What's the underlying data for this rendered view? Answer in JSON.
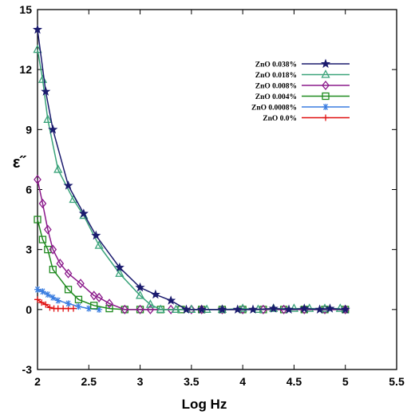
{
  "chart_data": {
    "type": "line",
    "title": "",
    "xlabel": "Log Hz",
    "ylabel": "ε˝",
    "xlim": [
      2,
      5.5
    ],
    "ylim": [
      -3,
      15
    ],
    "xticks": [
      2,
      2.5,
      3,
      3.5,
      4,
      4.5,
      5,
      5.5
    ],
    "xtick_labels": [
      "2",
      "2.5",
      "3",
      "3.5",
      "4",
      "4.5",
      "5",
      "5.5"
    ],
    "yticks": [
      -3,
      0,
      3,
      6,
      9,
      12,
      15
    ],
    "ytick_labels": [
      "-3",
      "0",
      "3",
      "6",
      "9",
      "12",
      "15"
    ],
    "grid": false,
    "legend_position": "top-right",
    "series": [
      {
        "name": "ZnO 0.038%",
        "color": "#1b1b6e",
        "marker": "star",
        "x": [
          2.0,
          2.08,
          2.15,
          2.3,
          2.45,
          2.57,
          2.8,
          3.0,
          3.15,
          3.3,
          3.45,
          3.6,
          3.8,
          3.95,
          4.1,
          4.3,
          4.45,
          4.6,
          4.75,
          4.85,
          5.0
        ],
        "y": [
          14.0,
          10.9,
          9.0,
          6.2,
          4.8,
          3.7,
          2.1,
          1.1,
          0.75,
          0.45,
          0.0,
          0.0,
          0.0,
          0.0,
          0.0,
          0.05,
          0.0,
          0.05,
          0.0,
          0.05,
          0.0
        ]
      },
      {
        "name": "ZnO 0.018%",
        "color": "#3aa37a",
        "marker": "triangle",
        "x": [
          2.0,
          2.05,
          2.1,
          2.2,
          2.35,
          2.45,
          2.6,
          2.8,
          3.0,
          3.1,
          3.2,
          3.35,
          3.5,
          3.65,
          3.8,
          4.0,
          4.15,
          4.3,
          4.5,
          4.65,
          4.8,
          4.95
        ],
        "y": [
          13.0,
          11.5,
          9.5,
          7.0,
          5.5,
          4.7,
          3.2,
          1.8,
          0.7,
          0.25,
          0.0,
          0.0,
          0.0,
          0.0,
          0.0,
          0.05,
          0.0,
          0.05,
          0.05,
          0.05,
          0.05,
          0.05
        ]
      },
      {
        "name": "ZnO 0.008%",
        "color": "#8b1a8b",
        "marker": "diamond",
        "x": [
          2.0,
          2.05,
          2.1,
          2.15,
          2.22,
          2.3,
          2.42,
          2.55,
          2.6,
          2.7,
          2.85,
          3.0,
          3.1,
          3.3,
          3.5,
          3.6,
          3.8,
          4.0,
          4.2,
          4.4,
          4.6,
          4.8,
          5.0
        ],
        "y": [
          6.5,
          5.3,
          4.0,
          3.0,
          2.3,
          1.8,
          1.3,
          0.7,
          0.6,
          0.3,
          0.0,
          0.0,
          0.0,
          0.0,
          0.0,
          0.0,
          0.0,
          0.0,
          0.0,
          0.0,
          0.0,
          0.0,
          0.0
        ]
      },
      {
        "name": "ZnO 0.004%",
        "color": "#1e8a1e",
        "marker": "square",
        "x": [
          2.0,
          2.05,
          2.1,
          2.15,
          2.3,
          2.4,
          2.55,
          2.7,
          2.85,
          3.0,
          3.2,
          3.4,
          3.6,
          3.8,
          4.0,
          4.2,
          4.4,
          4.6,
          4.8,
          5.0
        ],
        "y": [
          4.5,
          3.5,
          3.0,
          2.0,
          1.0,
          0.5,
          0.2,
          0.05,
          0.0,
          0.0,
          0.0,
          0.0,
          0.0,
          0.0,
          0.0,
          0.0,
          0.0,
          0.0,
          0.0,
          0.0
        ]
      },
      {
        "name": "ZnO 0.0008%",
        "color": "#3a7de0",
        "marker": "asterisk",
        "x": [
          2.0,
          2.05,
          2.1,
          2.15,
          2.2,
          2.3,
          2.4,
          2.5,
          2.6
        ],
        "y": [
          1.0,
          0.9,
          0.75,
          0.6,
          0.45,
          0.3,
          0.15,
          0.05,
          0.0
        ]
      },
      {
        "name": "ZnO 0.0%",
        "color": "#e01010",
        "marker": "plus",
        "x": [
          2.0,
          2.04,
          2.08,
          2.12,
          2.16,
          2.2,
          2.25,
          2.3,
          2.35
        ],
        "y": [
          0.5,
          0.35,
          0.25,
          0.1,
          0.05,
          0.05,
          0.05,
          0.05,
          0.05
        ]
      }
    ]
  }
}
